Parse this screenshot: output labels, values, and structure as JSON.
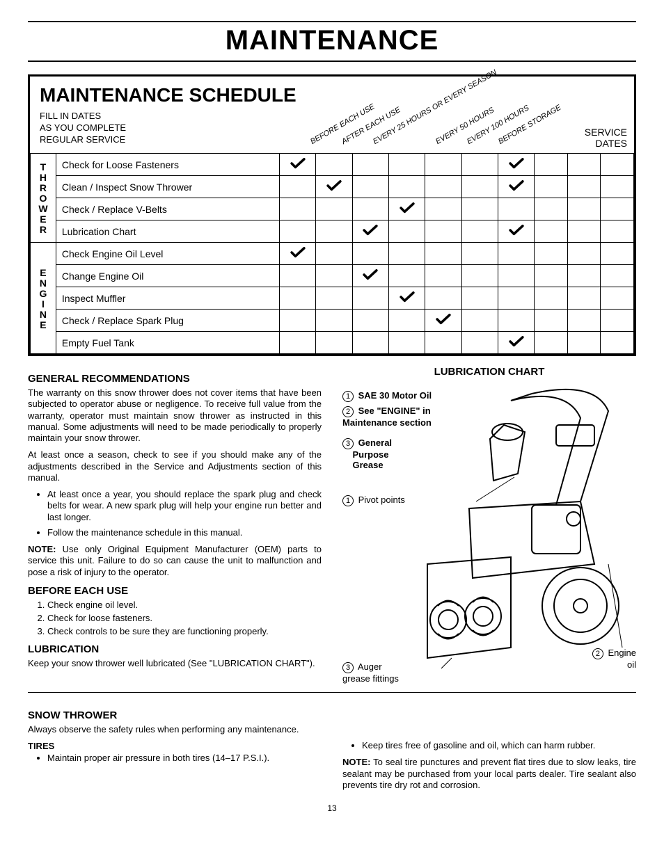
{
  "page_title": "MAINTENANCE",
  "schedule": {
    "title": "MAINTENANCE SCHEDULE",
    "subtitle_l1": "FILL IN DATES",
    "subtitle_l2": "AS YOU COMPLETE",
    "subtitle_l3": "REGULAR SERVICE",
    "service_dates_l1": "SERVICE",
    "service_dates_l2": "DATES",
    "columns": [
      "BEFORE EACH USE",
      "AFTER EACH USE",
      "EVERY 25 HOURS OR EVERY SEASON",
      "",
      "EVERY 50 HOURS",
      "EVERY 100 HOURS",
      "BEFORE STORAGE"
    ],
    "cat1": "THROWER",
    "cat2": "ENGINE",
    "rows_thrower": [
      {
        "task": "Check for Loose Fasteners",
        "checks": [
          true,
          false,
          false,
          false,
          false,
          false,
          true
        ]
      },
      {
        "task": "Clean / Inspect Snow Thrower",
        "checks": [
          false,
          true,
          false,
          false,
          false,
          false,
          true
        ]
      },
      {
        "task": "Check / Replace V-Belts",
        "checks": [
          false,
          false,
          false,
          true,
          false,
          false,
          false
        ]
      },
      {
        "task": "Lubrication Chart",
        "checks": [
          false,
          false,
          true,
          false,
          false,
          false,
          true
        ]
      }
    ],
    "rows_engine": [
      {
        "task": "Check Engine Oil Level",
        "checks": [
          true,
          false,
          false,
          false,
          false,
          false,
          false
        ]
      },
      {
        "task": "Change Engine Oil",
        "checks": [
          false,
          false,
          true,
          false,
          false,
          false,
          false
        ]
      },
      {
        "task": "Inspect Muffler",
        "checks": [
          false,
          false,
          false,
          true,
          false,
          false,
          false
        ]
      },
      {
        "task": "Check / Replace Spark Plug",
        "checks": [
          false,
          false,
          false,
          false,
          true,
          false,
          false
        ]
      },
      {
        "task": "Empty Fuel Tank",
        "checks": [
          false,
          false,
          false,
          false,
          false,
          false,
          true
        ]
      }
    ]
  },
  "gen_rec": {
    "h": "GENERAL RECOMMENDATIONS",
    "p1": "The warranty on this snow thrower does not cover items that have been subjected to operator abuse or negligence. To receive full value from the warranty, operator must maintain snow thrower as instructed in this manual. Some adjustments will need to be made periodically to properly maintain your snow thrower.",
    "p2": "At least once a season, check to see if you should make any of the adjustments described in the Service and Adjustments section of this manual.",
    "b1": "At least once a year, you should replace the spark plug and check belts for wear. A new spark plug will help your engine run better and last longer.",
    "b2": "Follow the maintenance schedule in this manual.",
    "note_label": "NOTE:",
    "note": " Use only Original Equipment Manufacturer (OEM) parts to service this unit. Failure to do so can cause the unit to malfunction and pose a risk of injury to the operator."
  },
  "before": {
    "h": "BEFORE EACH USE",
    "i1": "Check engine oil level.",
    "i2": "Check for loose fasteners.",
    "i3": "Check controls to be sure they are functioning properly."
  },
  "lub": {
    "h": "LUBRICATION",
    "p": "Keep your snow thrower well lubricated (See \"LUBRICATION CHART\")."
  },
  "lub_chart": {
    "h": "LUBRICATION CHART",
    "l1": "SAE 30 Motor Oil",
    "l2a": "See \"ENGINE\" in",
    "l2b": "Maintenance section",
    "l3a": "General",
    "l3b": "Purpose",
    "l3c": "Grease",
    "pivot": "Pivot points",
    "auger_l1": "Auger",
    "auger_l2": "grease fittings",
    "engine_l1": "Engine",
    "engine_l2": "oil",
    "n1": "1",
    "n2": "2",
    "n3": "3"
  },
  "snow": {
    "h": "SNOW THROWER",
    "p": "Always observe the safety rules when performing any maintenance.",
    "tires_h": "TIRES",
    "t1": "Maintain proper air pressure in both tires (14–17 P.S.I.).",
    "t2": "Keep tires free of gasoline and oil, which can harm rubber.",
    "note_label": "NOTE:",
    "note": " To seal tire punctures and prevent flat tires due to slow leaks, tire sealant may be purchased from your local parts dealer. Tire sealant also prevents tire dry rot and corrosion."
  },
  "page_number": "13"
}
